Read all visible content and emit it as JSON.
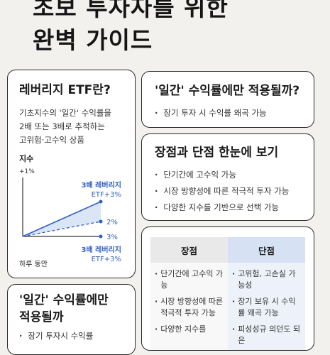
{
  "header": {
    "title_line1": "초보 투자자를 위한",
    "title_line2": "완벽 가이드"
  },
  "leverage_card": {
    "title": "레버리지 ETF란?",
    "desc_lines": [
      "기초지수의 '일간' 수익률을",
      "2배 또는 3배로 추적하는",
      "고위험·고수익 상품"
    ],
    "chart": {
      "y_label": "지수",
      "y_tick": "+1%",
      "x_label": "하루 동안",
      "upper_label_1": "3배 레버리지",
      "upper_label_2": "ETF+3%",
      "mid_label": "2%",
      "low_label": "3%",
      "lower_label_1": "3배 레버리지",
      "lower_label_2": "ETF+3%",
      "accent": "#2f5fc4"
    }
  },
  "daily_top_card": {
    "title": "'일간' 수익률에만 적용될까?",
    "bullets": [
      "장기 투자 시 수익률 왜곡 가능"
    ]
  },
  "pros_cons_card": {
    "title": "장점과 단점 한눈에 보기",
    "bullets": [
      "단기간에 고수익 가능",
      "시장 방향성에 따른 적극적 투자 가능",
      "다양한 지수를 기반으로 선택 가능"
    ]
  },
  "table_card": {
    "pros_header": "장점",
    "cons_header": "단점",
    "pros": [
      "단기간에 고수익 가능",
      "시장 방향성에 따른 적극적 투자 가능",
      "다양한 지수를"
    ],
    "cons": [
      "고위험, 고손실 가능성",
      "장기 보유 시 수익률 왜곡 가능",
      "피성성규 의던도 되은"
    ]
  },
  "daily_bottom_card": {
    "title_line1": "'일간' 수익률에만",
    "title_line2": "적용될까",
    "bullets": [
      "장기 투자시 수익률"
    ]
  }
}
